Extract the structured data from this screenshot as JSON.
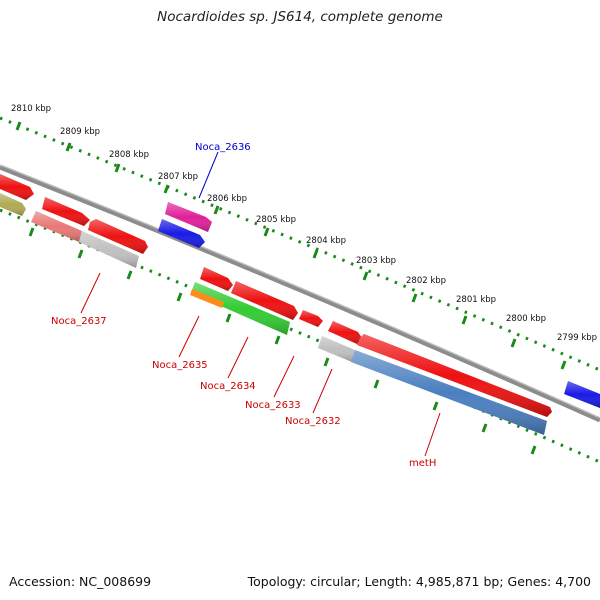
{
  "title": "Nocardioides sp. JS614, complete genome",
  "footer": {
    "accession": "Accession: NC_008699",
    "summary": "Topology: circular; Length: 4,985,871 bp; Genes: 4,700"
  },
  "colors": {
    "backbone": "#8c8c8c",
    "ruler_dots": "#1a8a1a",
    "ruler_ticks": "#1a8a1a",
    "label_red": "#cc0000",
    "label_blue": "#0000cc"
  },
  "scale_labels": [
    "2810 kbp",
    "2809 kbp",
    "2808 kbp",
    "2807 kbp",
    "2806 kbp",
    "2805 kbp",
    "2804 kbp",
    "2803 kbp",
    "2802 kbp",
    "2801 kbp",
    "2800 kbp",
    "2799 kbp"
  ],
  "gene_labels": [
    {
      "text": "Noca_2636",
      "color": "#0000cc"
    },
    {
      "text": "Noca_2637",
      "color": "#cc0000"
    },
    {
      "text": "Noca_2635",
      "color": "#cc0000"
    },
    {
      "text": "Noca_2634",
      "color": "#cc0000"
    },
    {
      "text": "Noca_2633",
      "color": "#cc0000"
    },
    {
      "text": "Noca_2632",
      "color": "#cc0000"
    },
    {
      "text": "metH",
      "color": "#cc0000"
    }
  ],
  "feature_colors": {
    "red": "#ee1111",
    "magenta": "#e0209a",
    "blue": "#1a1ae6",
    "olive": "#b0aa55",
    "pink": "#e87878",
    "grey": "#c0c0c0",
    "green": "#33cc33",
    "orange": "#ff8c1a",
    "steelblue": "#4a7fc0"
  }
}
